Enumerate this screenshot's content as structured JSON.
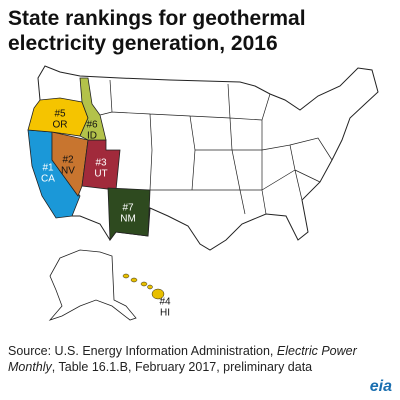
{
  "title": "State rankings for geothermal electricity generation, 2016",
  "states": [
    {
      "rank": "#1",
      "abbr": "CA",
      "color": "#1b98d8"
    },
    {
      "rank": "#2",
      "abbr": "NV",
      "color": "#c8752f"
    },
    {
      "rank": "#3",
      "abbr": "UT",
      "color": "#a12a3b"
    },
    {
      "rank": "#4",
      "abbr": "HI",
      "color": "#e8bf00"
    },
    {
      "rank": "#5",
      "abbr": "OR",
      "color": "#f5c400"
    },
    {
      "rank": "#6",
      "abbr": "ID",
      "color": "#b3c24a"
    },
    {
      "rank": "#7",
      "abbr": "NM",
      "color": "#2e4a1f"
    }
  ],
  "source": {
    "prefix": "Source: U.S. Energy Information Administration, ",
    "publication": "Electric Power Monthly",
    "suffix": ", Table 16.1.B, February 2017, preliminary data"
  },
  "logo": "eia"
}
